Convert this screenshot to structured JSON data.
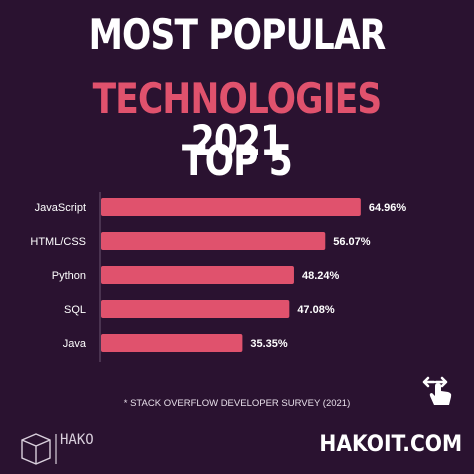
{
  "header": {
    "line1": "MOST POPULAR",
    "line2_accent": "TECHNOLOGIES",
    "line2_rest": "2021",
    "line3": "TOP 5"
  },
  "footnote": "* STACK OVERFLOW DEVELOPER SURVEY (2021)",
  "site": "HAKOIT.COM",
  "brand": {
    "logo_text": "HAKO"
  },
  "icons": {
    "swipe": "swipe-hand-icon",
    "logo": "cube-logo-icon"
  },
  "colors": {
    "background": "#2a1230",
    "bar": "#e0526d",
    "accent": "#e0526d",
    "text": "#ffffff"
  },
  "chart_data": {
    "type": "bar",
    "orientation": "horizontal",
    "categories": [
      "JavaScript",
      "HTML/CSS",
      "Python",
      "SQL",
      "Java"
    ],
    "values": [
      64.96,
      56.07,
      48.24,
      47.08,
      35.35
    ],
    "value_labels": [
      "64.96%",
      "56.07%",
      "48.24%",
      "47.08%",
      "35.35%"
    ],
    "xlim": [
      0,
      100
    ],
    "grid": false
  }
}
